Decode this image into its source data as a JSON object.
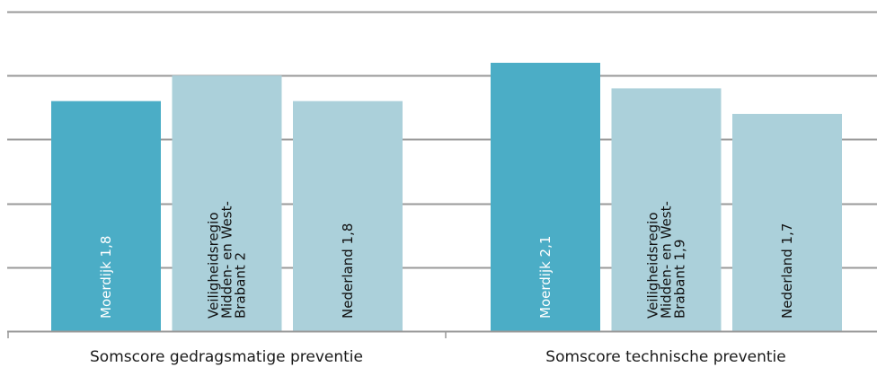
{
  "chart_data": {
    "type": "bar",
    "categories": [
      "Somscore gedragsmatige preventie",
      "Somscore technische preventie"
    ],
    "ylim": [
      0,
      2.5
    ],
    "grid": true,
    "bars": [
      {
        "category": 0,
        "label_lines": [
          "Moerdijk 1,8"
        ],
        "value": 1.8,
        "color": "#4badc6",
        "text_color": "#ffffff"
      },
      {
        "category": 0,
        "label_lines": [
          "Veiligheidsregio",
          "Midden- en West-",
          "Brabant 2"
        ],
        "value": 2.0,
        "color": "#abd0da",
        "text_color": "#111111"
      },
      {
        "category": 0,
        "label_lines": [
          "Nederland 1,8"
        ],
        "value": 1.8,
        "color": "#abd0da",
        "text_color": "#111111"
      },
      {
        "category": 1,
        "label_lines": [
          "Moerdijk 2,1"
        ],
        "value": 2.1,
        "color": "#4badc6",
        "text_color": "#ffffff"
      },
      {
        "category": 1,
        "label_lines": [
          "Veiligheidsregio",
          "Midden- en West-",
          "Brabant 1,9"
        ],
        "value": 1.9,
        "color": "#abd0da",
        "text_color": "#111111"
      },
      {
        "category": 1,
        "label_lines": [
          "Nederland 1,7"
        ],
        "value": 1.7,
        "color": "#abd0da",
        "text_color": "#111111"
      }
    ],
    "gridline_color": "#999999"
  }
}
